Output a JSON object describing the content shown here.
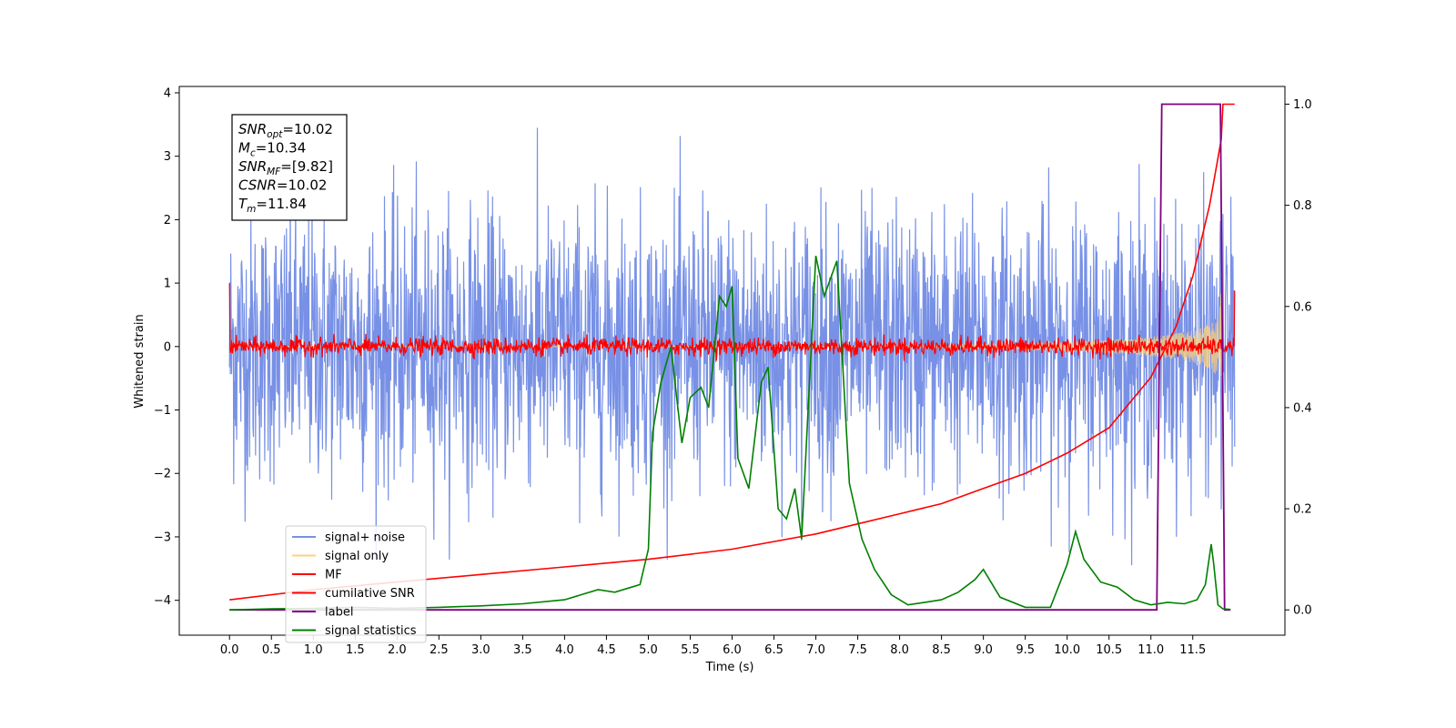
{
  "chart_data": {
    "type": "line",
    "xlabel": "Time (s)",
    "ylabel": "Whitened strain",
    "x_ticks": [
      "0.0",
      "0.5",
      "1.0",
      "1.5",
      "2.0",
      "2.5",
      "3.0",
      "3.5",
      "4.0",
      "4.5",
      "5.0",
      "5.5",
      "6.0",
      "6.5",
      "7.0",
      "7.5",
      "8.0",
      "8.5",
      "9.0",
      "9.5",
      "10.0",
      "10.5",
      "11.0",
      "11.5"
    ],
    "y_ticks": [
      "4",
      "3",
      "2",
      "1",
      "0",
      "−1",
      "−2",
      "−3",
      "−4"
    ],
    "y2_ticks": [
      "1.0",
      "0.8",
      "0.6",
      "0.4",
      "0.2",
      "0.0"
    ],
    "xlim": [
      -0.6,
      12.6
    ],
    "ylim": [
      -4.55,
      4.1
    ],
    "y2lim": [
      -0.05,
      1.035
    ],
    "annotation": [
      {
        "base": "SNR",
        "sub": "opt",
        "value": "=10.02"
      },
      {
        "base": "M",
        "sub": "c",
        "value": "=10.34"
      },
      {
        "base": "SNR",
        "sub": "MF",
        "value": "=[9.82]"
      },
      {
        "base": "CSNR",
        "sub": "",
        "value": "=10.02"
      },
      {
        "base": "T",
        "sub": "m",
        "value": "=11.84"
      }
    ],
    "legend": [
      {
        "name": "signal+ noise",
        "color": "#7891e6"
      },
      {
        "name": "signal only",
        "color": "#ffd27a"
      },
      {
        "name": "MF",
        "color": "#ff0000"
      },
      {
        "name": "cumilative SNR",
        "color": "#ff0000"
      },
      {
        "name": "label",
        "color": "#800080"
      },
      {
        "name": "signal statistics",
        "color": "#008000"
      }
    ],
    "series": [
      {
        "name": "signal+ noise",
        "axis": "left",
        "color": "#7891e6",
        "description": "white noise plus chirp, approx range -3.3 to 3.7 across 0.0–12.0 s",
        "noise_amplitude": 1.0,
        "peak_max": 3.7,
        "peak_min": -3.35
      },
      {
        "name": "signal only",
        "axis": "left",
        "color": "#ffd27a",
        "description": "chirp growing from 0 to amplitude ~0.9 by 11.84 s",
        "t_merger": 11.84,
        "max_amplitude": 0.9
      },
      {
        "name": "MF",
        "axis": "left",
        "color": "#ff0000",
        "description": "matched-filter output, noise band about 0 with spikes to ~1.0 at t=0 and ~0.9 at t=12.0",
        "noise_amplitude": 0.09,
        "start_value": 1.0,
        "end_value": 0.88
      },
      {
        "name": "cumilative SNR",
        "axis": "right",
        "color": "#ff0000",
        "x": [
          0.0,
          1.0,
          2.0,
          3.0,
          4.0,
          5.0,
          6.0,
          7.0,
          7.5,
          8.0,
          8.5,
          9.0,
          9.5,
          10.0,
          10.5,
          11.0,
          11.3,
          11.5,
          11.7,
          11.84,
          11.86,
          12.0
        ],
        "values": [
          0.02,
          0.04,
          0.055,
          0.07,
          0.085,
          0.1,
          0.12,
          0.15,
          0.17,
          0.19,
          0.21,
          0.24,
          0.27,
          0.31,
          0.36,
          0.46,
          0.56,
          0.66,
          0.8,
          0.93,
          1.0,
          1.0
        ]
      },
      {
        "name": "label",
        "axis": "right",
        "color": "#800080",
        "x": [
          0.0,
          11.07,
          11.13,
          11.83,
          11.88,
          11.95
        ],
        "values": [
          0.0,
          0.0,
          1.0,
          1.0,
          0.0,
          0.0
        ]
      },
      {
        "name": "signal statistics",
        "axis": "right",
        "color": "#008000",
        "x": [
          0.0,
          0.5,
          1.0,
          1.5,
          2.0,
          2.5,
          3.0,
          3.5,
          4.0,
          4.2,
          4.4,
          4.6,
          4.8,
          4.9,
          5.0,
          5.05,
          5.15,
          5.27,
          5.4,
          5.5,
          5.63,
          5.72,
          5.85,
          5.93,
          6.0,
          6.07,
          6.2,
          6.35,
          6.43,
          6.55,
          6.65,
          6.75,
          6.83,
          7.0,
          7.1,
          7.25,
          7.4,
          7.55,
          7.7,
          7.9,
          8.1,
          8.3,
          8.5,
          8.7,
          8.9,
          9.0,
          9.2,
          9.5,
          9.8,
          10.0,
          10.1,
          10.2,
          10.4,
          10.6,
          10.8,
          11.0,
          11.2,
          11.4,
          11.55,
          11.65,
          11.72,
          11.75,
          11.8,
          11.86,
          11.95
        ],
        "values": [
          0.0,
          0.002,
          0.003,
          0.005,
          0.003,
          0.005,
          0.008,
          0.012,
          0.02,
          0.03,
          0.04,
          0.035,
          0.045,
          0.05,
          0.12,
          0.35,
          0.45,
          0.52,
          0.33,
          0.42,
          0.44,
          0.4,
          0.62,
          0.6,
          0.64,
          0.3,
          0.24,
          0.45,
          0.48,
          0.2,
          0.18,
          0.24,
          0.14,
          0.7,
          0.62,
          0.69,
          0.25,
          0.14,
          0.08,
          0.03,
          0.01,
          0.015,
          0.02,
          0.035,
          0.06,
          0.08,
          0.025,
          0.005,
          0.005,
          0.09,
          0.155,
          0.1,
          0.055,
          0.045,
          0.02,
          0.01,
          0.015,
          0.012,
          0.02,
          0.05,
          0.13,
          0.09,
          0.01,
          0.002,
          0.001
        ]
      }
    ]
  }
}
